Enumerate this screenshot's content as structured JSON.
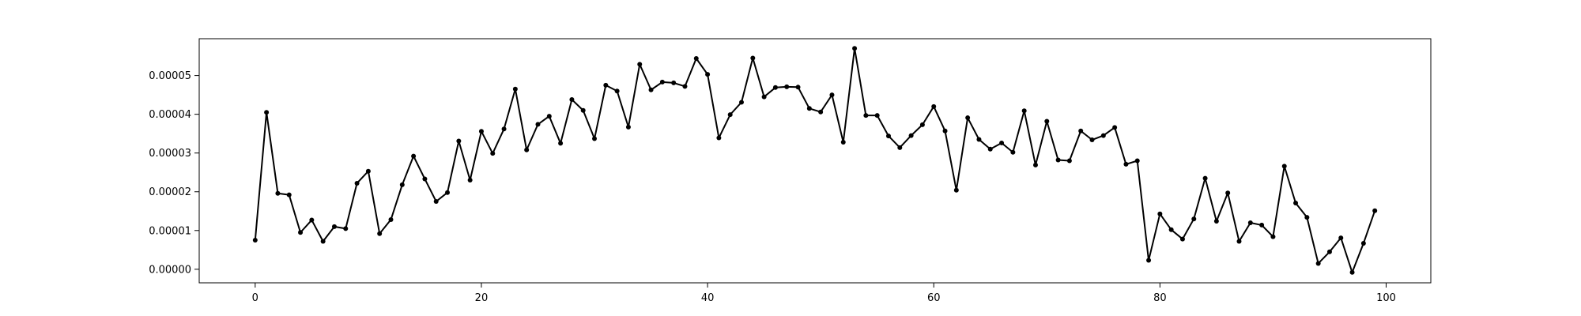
{
  "chart_data": {
    "type": "line",
    "title": "",
    "xlabel": "",
    "ylabel": "",
    "xlim": [
      -4.95,
      103.95
    ],
    "ylim": [
      -3.5e-06,
      5.95e-05
    ],
    "grid": false,
    "x_ticks": [
      0,
      20,
      40,
      60,
      80,
      100
    ],
    "x_tick_labels": [
      "0",
      "20",
      "40",
      "60",
      "80",
      "100"
    ],
    "y_ticks": [
      0,
      1e-05,
      2e-05,
      3e-05,
      4e-05,
      5e-05
    ],
    "y_tick_labels": [
      "0.00000",
      "0.00001",
      "0.00002",
      "0.00003",
      "0.00004",
      "0.00005"
    ],
    "series": [
      {
        "color": "#000000",
        "marker": "dot",
        "x": [
          0,
          1,
          2,
          3,
          4,
          5,
          6,
          7,
          8,
          9,
          10,
          11,
          12,
          13,
          14,
          15,
          16,
          17,
          18,
          19,
          20,
          21,
          22,
          23,
          24,
          25,
          26,
          27,
          28,
          29,
          30,
          31,
          32,
          33,
          34,
          35,
          36,
          37,
          38,
          39,
          40,
          41,
          42,
          43,
          44,
          45,
          46,
          47,
          48,
          49,
          50,
          51,
          52,
          53,
          54,
          55,
          56,
          57,
          58,
          59,
          60,
          61,
          62,
          63,
          64,
          65,
          66,
          67,
          68,
          69,
          70,
          71,
          72,
          73,
          74,
          75,
          76,
          77,
          78,
          79,
          80,
          81,
          82,
          83,
          84,
          85,
          86,
          87,
          88,
          89,
          90,
          91,
          92,
          93,
          94,
          95,
          96,
          97,
          98,
          99
        ],
        "values": [
          7.5e-06,
          4.05e-05,
          1.96e-05,
          1.92e-05,
          9.5e-06,
          1.27e-05,
          7.2e-06,
          1.1e-05,
          1.05e-05,
          2.22e-05,
          2.53e-05,
          9.2e-06,
          1.28e-05,
          2.18e-05,
          2.92e-05,
          2.33e-05,
          1.75e-05,
          1.98e-05,
          3.31e-05,
          2.3e-05,
          3.56e-05,
          2.99e-05,
          3.62e-05,
          4.65e-05,
          3.08e-05,
          3.74e-05,
          3.95e-05,
          3.25e-05,
          4.38e-05,
          4.1e-05,
          3.37e-05,
          4.75e-05,
          4.6e-05,
          3.67e-05,
          5.29e-05,
          4.63e-05,
          4.83e-05,
          4.81e-05,
          4.72e-05,
          5.44e-05,
          5.03e-05,
          3.39e-05,
          3.99e-05,
          4.31e-05,
          5.45e-05,
          4.45e-05,
          4.69e-05,
          4.71e-05,
          4.7e-05,
          4.15e-05,
          4.06e-05,
          4.5e-05,
          3.28e-05,
          5.7e-05,
          3.97e-05,
          3.97e-05,
          3.44e-05,
          3.14e-05,
          3.45e-05,
          3.73e-05,
          4.2e-05,
          3.57e-05,
          2.04e-05,
          3.91e-05,
          3.35e-05,
          3.1e-05,
          3.26e-05,
          3.02e-05,
          4.09e-05,
          2.69e-05,
          3.82e-05,
          2.82e-05,
          2.8e-05,
          3.57e-05,
          3.34e-05,
          3.45e-05,
          3.66e-05,
          2.71e-05,
          2.8e-05,
          2.3e-06,
          1.43e-05,
          1.02e-05,
          7.8e-06,
          1.3e-05,
          2.35e-05,
          1.24e-05,
          1.97e-05,
          7.2e-06,
          1.2e-05,
          1.14e-05,
          8.4e-06,
          2.66e-05,
          1.71e-05,
          1.34e-05,
          1.5e-06,
          4.5e-06,
          8.1e-06,
          -8e-07,
          6.7e-06,
          1.51e-05
        ]
      }
    ]
  }
}
